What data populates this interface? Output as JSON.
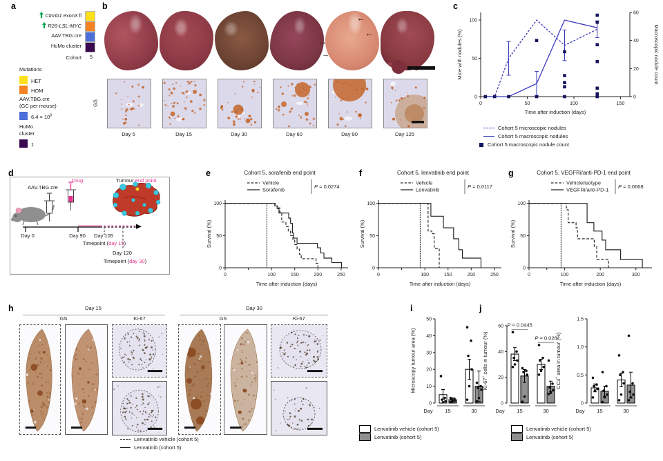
{
  "figure": {
    "a": {
      "label": "a",
      "rows": [
        {
          "gene": "Ctnnb1",
          "suffix": " exon3 fl",
          "color": "#FFE01A"
        },
        {
          "gene": "R26-LSL-MYC",
          "suffix": "",
          "color": "#F58220"
        },
        {
          "gene": "",
          "suffix": "AAV.TBG.cre",
          "color": "#4D6FD9"
        },
        {
          "gene": "",
          "suffix": "HuMo cluster",
          "color": "#3A0850"
        }
      ],
      "cohort_label": "Cohort",
      "cohort_value": "5",
      "mutations": {
        "title": "Mutations",
        "items": [
          {
            "label": "HET",
            "color": "#FFE01A"
          },
          {
            "label": "HOM",
            "color": "#F58220"
          }
        ]
      },
      "aav": {
        "line1": "AAV.TBG.cre",
        "line2": "(GC per mouse)",
        "value_base": "6.4 × 10",
        "value_sup": "8",
        "color": "#4D6FD9"
      },
      "humo": {
        "line1": "HuMo",
        "line2": "cluster",
        "value": "1",
        "color": "#3A0850"
      }
    },
    "b": {
      "label": "b",
      "gs_label": "GS",
      "days": [
        "Day 5",
        "Day 15",
        "Day 30",
        "Day 60",
        "Day 90",
        "Day 125"
      ]
    },
    "c": {
      "label": "c"
    },
    "d": {
      "label": "d",
      "aav": "AAV.TBG.cre",
      "drug": "Drug",
      "tumour": "Tumour ",
      "endpoint": "end point",
      "day0": "Day 0",
      "day90": "Day 90",
      "day105": "Day 105",
      "tp15_pre": "Timepoint (",
      "tp15_hl": "day 15",
      "tp15_post": ")",
      "day120": "Day 120",
      "tp30_pre": "Timepoint (",
      "tp30_hl": "day 30",
      "tp30_post": ")"
    },
    "e": {
      "label": "e"
    },
    "f": {
      "label": "f"
    },
    "g": {
      "label": "g"
    },
    "h": {
      "label": "h",
      "day15": "Day 15",
      "day30": "Day 30",
      "gs": "GS",
      "ki67": "Ki-67",
      "legend": [
        {
          "style": "dashed",
          "label": "Lenvatinib vehicle (cohort 5)"
        },
        {
          "style": "solid",
          "label": "Lenvatinib (cohort 5)"
        }
      ]
    },
    "i": {
      "label": "i",
      "legend": [
        {
          "color": "#FFFFFF",
          "label": "Lenvatinib vehicle (cohort 5)"
        },
        {
          "color": "#8F8F8F",
          "label": "Lenvatinib (cohort 5)"
        }
      ]
    },
    "j": {
      "label": "j",
      "legend": [
        {
          "color": "#FFFFFF",
          "label": "Lenvatinib vehicle (cohort 5)"
        },
        {
          "color": "#8F8F8F",
          "label": "Lenvatinib (cohort 5)"
        }
      ]
    }
  },
  "chart_data": [
    {
      "id": "c",
      "type": "line",
      "xlabel": "Time after induction (days)",
      "ylabel_left": "Mice with nodules (%)",
      "ylabel_right": "Macroscopic nodule count",
      "xlim": [
        0,
        160
      ],
      "xticks": [
        0,
        50,
        100,
        150
      ],
      "yticks_left": [
        0,
        50,
        100
      ],
      "ymax_left": 110,
      "yticks_right": [
        0,
        20,
        40,
        60
      ],
      "ymax_right": 60,
      "line_color": "#3A3ABB",
      "point_color": "#15155F",
      "series": [
        {
          "name": "Cohort 5 microscopic nodules",
          "style": "dashed",
          "x": [
            5,
            15,
            30,
            60,
            90,
            125
          ],
          "y": [
            0,
            0,
            50,
            100,
            67,
            88
          ],
          "err": [
            0,
            0,
            22,
            0,
            20,
            11
          ]
        },
        {
          "name": "Cohort 5 macroscopic nodules",
          "style": "solid",
          "x": [
            5,
            15,
            30,
            60,
            90,
            125
          ],
          "y": [
            0,
            0,
            0,
            17,
            100,
            90
          ],
          "err": [
            0,
            0,
            0,
            16,
            0,
            0
          ]
        }
      ],
      "points": {
        "name": "Cohort 5 macroscopic nodule count",
        "axis": "right",
        "values": [
          [
            5,
            0
          ],
          [
            15,
            0
          ],
          [
            30,
            0
          ],
          [
            60,
            0
          ],
          [
            60,
            40
          ],
          [
            90,
            0
          ],
          [
            90,
            7
          ],
          [
            90,
            10
          ],
          [
            90,
            15
          ],
          [
            90,
            32
          ],
          [
            125,
            0
          ],
          [
            125,
            2
          ],
          [
            125,
            6
          ],
          [
            125,
            25
          ],
          [
            125,
            37
          ],
          [
            125,
            53
          ],
          [
            125,
            58
          ]
        ]
      }
    },
    {
      "id": "e",
      "type": "survival",
      "title": "Cohort 5, sorafenib end point",
      "p_value": "P = 0.0274",
      "xlabel": "Time after induction (days)",
      "ylabel": "Survival (%)",
      "xlim": [
        0,
        265
      ],
      "xticks": [
        0,
        100,
        150,
        200,
        250
      ],
      "xminor": [
        50
      ],
      "yticks": [
        0,
        50,
        100
      ],
      "treatment_day": 90,
      "series": [
        {
          "name": "Vehicle",
          "style": "dashed",
          "points": [
            [
              0,
              100
            ],
            [
              108,
              100
            ],
            [
              108,
              96
            ],
            [
              113,
              96
            ],
            [
              113,
              93
            ],
            [
              118,
              93
            ],
            [
              118,
              86
            ],
            [
              122,
              86
            ],
            [
              122,
              71
            ],
            [
              131,
              71
            ],
            [
              131,
              64
            ],
            [
              136,
              64
            ],
            [
              136,
              57
            ],
            [
              141,
              57
            ],
            [
              141,
              50
            ],
            [
              146,
              50
            ],
            [
              146,
              43
            ],
            [
              150,
              43
            ],
            [
              150,
              36
            ],
            [
              155,
              36
            ],
            [
              155,
              29
            ],
            [
              160,
              29
            ],
            [
              160,
              21
            ],
            [
              164,
              21
            ],
            [
              164,
              14
            ],
            [
              196,
              14
            ],
            [
              196,
              7
            ],
            [
              200,
              7
            ],
            [
              200,
              0
            ]
          ]
        },
        {
          "name": "Sorafenib",
          "style": "solid",
          "points": [
            [
              0,
              100
            ],
            [
              107,
              100
            ],
            [
              107,
              96
            ],
            [
              112,
              96
            ],
            [
              112,
              92
            ],
            [
              116,
              92
            ],
            [
              116,
              85
            ],
            [
              137,
              85
            ],
            [
              137,
              77
            ],
            [
              141,
              77
            ],
            [
              141,
              69
            ],
            [
              145,
              69
            ],
            [
              145,
              54
            ],
            [
              148,
              54
            ],
            [
              148,
              46
            ],
            [
              155,
              46
            ],
            [
              155,
              38
            ],
            [
              199,
              38
            ],
            [
              199,
              31
            ],
            [
              206,
              31
            ],
            [
              206,
              23
            ],
            [
              213,
              23
            ],
            [
              213,
              15
            ],
            [
              230,
              15
            ],
            [
              230,
              8
            ],
            [
              251,
              8
            ],
            [
              251,
              0
            ]
          ]
        }
      ]
    },
    {
      "id": "f",
      "type": "survival",
      "title": "Cohort 5, lenvatinib end point",
      "p_value": "P = 0.0117",
      "xlabel": "Time after induction (days)",
      "ylabel": "Survival (%)",
      "xlim": [
        0,
        265
      ],
      "xticks": [
        0,
        100,
        150,
        200,
        250
      ],
      "xminor": [
        50
      ],
      "yticks": [
        0,
        50,
        100
      ],
      "treatment_day": 90,
      "series": [
        {
          "name": "Vehicle",
          "style": "dashed",
          "points": [
            [
              0,
              100
            ],
            [
              107,
              100
            ],
            [
              107,
              57
            ],
            [
              115,
              57
            ],
            [
              115,
              53
            ],
            [
              120,
              53
            ],
            [
              120,
              30
            ],
            [
              131,
              30
            ],
            [
              131,
              0
            ]
          ]
        },
        {
          "name": "Lenvatinib",
          "style": "solid",
          "points": [
            [
              0,
              100
            ],
            [
              113,
              100
            ],
            [
              113,
              80
            ],
            [
              140,
              80
            ],
            [
              140,
              62
            ],
            [
              162,
              62
            ],
            [
              162,
              45
            ],
            [
              173,
              45
            ],
            [
              173,
              28
            ],
            [
              181,
              28
            ],
            [
              181,
              15
            ],
            [
              221,
              15
            ],
            [
              221,
              0
            ]
          ]
        }
      ]
    },
    {
      "id": "g",
      "type": "survival",
      "title": "Cohort 5, VEGFRi/anti-PD-1 end point",
      "p_value": "P = 0.0668",
      "xlabel": "Time after induction (days)",
      "ylabel": "Survival (%)",
      "xlim": [
        0,
        345
      ],
      "xticks": [
        0,
        100,
        200,
        300
      ],
      "xminor": [
        50
      ],
      "yticks": [
        0,
        50,
        100
      ],
      "treatment_day": 90,
      "series": [
        {
          "name": "Vehicle/isotype",
          "style": "dashed",
          "points": [
            [
              0,
              100
            ],
            [
              105,
              100
            ],
            [
              105,
              90
            ],
            [
              110,
              90
            ],
            [
              110,
              70
            ],
            [
              132,
              70
            ],
            [
              132,
              62
            ],
            [
              136,
              62
            ],
            [
              136,
              45
            ],
            [
              183,
              45
            ],
            [
              183,
              33
            ],
            [
              190,
              33
            ],
            [
              190,
              13
            ],
            [
              223,
              13
            ],
            [
              223,
              0
            ]
          ]
        },
        {
          "name": "VEGFRi/anti-PD-1",
          "style": "solid",
          "points": [
            [
              0,
              100
            ],
            [
              163,
              100
            ],
            [
              163,
              70
            ],
            [
              182,
              70
            ],
            [
              182,
              57
            ],
            [
              205,
              57
            ],
            [
              205,
              43
            ],
            [
              215,
              43
            ],
            [
              215,
              28
            ],
            [
              257,
              28
            ],
            [
              257,
              13
            ],
            [
              318,
              13
            ],
            [
              318,
              0
            ]
          ]
        }
      ]
    },
    {
      "id": "i",
      "type": "bar",
      "ylabel": {
        "pre": "Microscopy tumour area (%)",
        "sup": "",
        "post": ""
      },
      "ymax": 50,
      "yticks": [
        0,
        10,
        20,
        30,
        40,
        50
      ],
      "day_label": "Day",
      "groups": [
        "15",
        "30"
      ],
      "series": [
        {
          "name": "Lenvatinib vehicle (cohort 5)",
          "color": "#FFFFFF",
          "means": [
            5,
            20
          ],
          "errs": [
            3,
            6
          ],
          "dots": [
            [
              16,
              3,
              2,
              1,
              0.5
            ],
            [
              45,
              37,
              28,
              20,
              10,
              2
            ]
          ]
        },
        {
          "name": "Lenvatinib (cohort 5)",
          "color": "#8F8F8F",
          "means": [
            2,
            10
          ],
          "errs": [
            1,
            9
          ],
          "dots": [
            [
              3,
              2.5,
              2,
              1.5,
              1,
              0.5
            ],
            [
              12,
              10,
              9,
              8,
              3,
              1
            ]
          ]
        }
      ]
    },
    {
      "id": "j1",
      "type": "bar",
      "ylabel": {
        "pre": "Ki-67",
        "sup": "+",
        "post": " cells in tumour (%)"
      },
      "ymax": 60,
      "yticks": [
        0,
        20,
        40,
        60
      ],
      "day_label": "Day",
      "groups": [
        "15",
        "30"
      ],
      "p_values": [
        {
          "text": "P = 0.0445",
          "group": 0,
          "y": 57
        },
        {
          "text": "P = 0.026",
          "group": 1,
          "y": 47
        }
      ],
      "series": [
        {
          "name": "Lenvatinib vehicle (cohort 5)",
          "color": "#FFFFFF",
          "means": [
            38,
            30
          ],
          "errs": [
            5,
            4
          ],
          "dots": [
            [
              55,
              40,
              35,
              33,
              30,
              28
            ],
            [
              45,
              35,
              33,
              28,
              25,
              22
            ]
          ]
        },
        {
          "name": "Lenvatinib (cohort 5)",
          "color": "#8F8F8F",
          "means": [
            21,
            13
          ],
          "errs": [
            5,
            4
          ],
          "dots": [
            [
              27,
              25,
              24,
              22,
              5,
              1
            ],
            [
              33,
              15,
              12,
              10,
              8,
              7
            ]
          ]
        }
      ]
    },
    {
      "id": "j2",
      "type": "bar",
      "decimals": true,
      "ylabel": {
        "pre": "CC3",
        "sup": "+",
        "post": " area in tumour (%)"
      },
      "ymax": 1.5,
      "yticks": [
        0,
        0.5,
        1.0,
        1.5
      ],
      "day_label": "Day",
      "groups": [
        "15",
        "30"
      ],
      "series": [
        {
          "name": "Lenvatinib vehicle (cohort 5)",
          "color": "#FFFFFF",
          "means": [
            0.27,
            0.41
          ],
          "errs": [
            0.07,
            0.12
          ],
          "dots": [
            [
              0.45,
              0.33,
              0.3,
              0.25,
              0.22,
              0.1
            ],
            [
              0.85,
              0.55,
              0.5,
              0.35,
              0.15,
              0.05
            ]
          ]
        },
        {
          "name": "Lenvatinib (cohort 5)",
          "color": "#8F8F8F",
          "means": [
            0.21,
            0.32
          ],
          "errs": [
            0.09,
            0.23
          ],
          "dots": [
            [
              0.55,
              0.3,
              0.22,
              0.15,
              0.1,
              0.02
            ],
            [
              1.2,
              0.35,
              0.2,
              0.15,
              0.1,
              0.05
            ]
          ]
        }
      ]
    }
  ]
}
